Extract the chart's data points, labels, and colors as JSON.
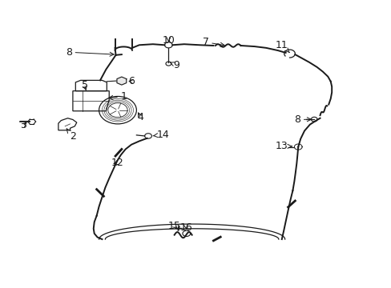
{
  "background_color": "#ffffff",
  "line_color": "#1a1a1a",
  "label_color": "#000000",
  "fig_width": 4.89,
  "fig_height": 3.6,
  "label_fontsize": 9.0,
  "lw_hose": 1.4,
  "lw_thin": 0.9
}
